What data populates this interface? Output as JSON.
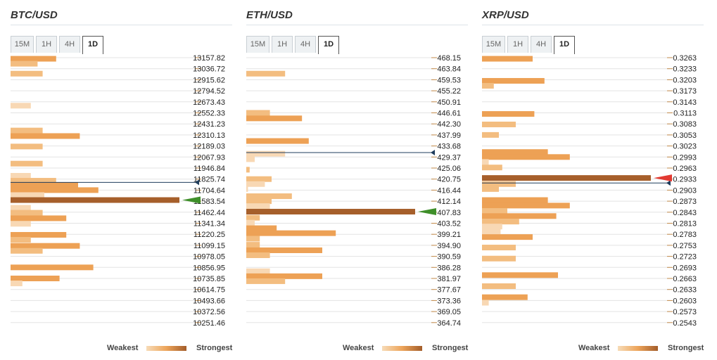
{
  "timeframes": [
    "15M",
    "1H",
    "4H",
    "1D"
  ],
  "active_timeframe": "1D",
  "legend": {
    "weakest": "Weakest",
    "strongest": "Strongest"
  },
  "colors": {
    "light": "#f8d8b4",
    "mid": "#f3bd80",
    "orange": "#eda155",
    "dark": "#a65f2b",
    "grid": "#e3e3e3",
    "price_line": "#1f3d5c",
    "green_marker": "#3f8f2a",
    "red_marker": "#e23a32"
  },
  "chart_data": [
    {
      "type": "bar",
      "title": "BTC/USD",
      "price_levels": [
        "13157.82",
        "13036.72",
        "12915.62",
        "12794.52",
        "12673.43",
        "12552.33",
        "12431.23",
        "12310.13",
        "12189.03",
        "12067.93",
        "11946.84",
        "11825.74",
        "11704.64",
        "11583.54",
        "11462.44",
        "11341.34",
        "11220.25",
        "11099.15",
        "10978.05",
        "10856.95",
        "10735.85",
        "10614.75",
        "10493.66",
        "10372.56",
        "10251.46"
      ],
      "bars": [
        {
          "pos": 0.1,
          "value": 0.27,
          "level": 2
        },
        {
          "pos": 0.55,
          "value": 0.16,
          "level": 1
        },
        {
          "pos": 1.45,
          "value": 0.19,
          "level": 1
        },
        {
          "pos": 4.35,
          "value": 0.12,
          "level": 0
        },
        {
          "pos": 6.6,
          "value": 0.19,
          "level": 1
        },
        {
          "pos": 7.1,
          "value": 0.41,
          "level": 2
        },
        {
          "pos": 8.05,
          "value": 0.19,
          "level": 1
        },
        {
          "pos": 9.6,
          "value": 0.19,
          "level": 1
        },
        {
          "pos": 10.7,
          "value": 0.12,
          "level": 0
        },
        {
          "pos": 11.15,
          "value": 0.27,
          "level": 1
        },
        {
          "pos": 11.55,
          "value": 0.4,
          "level": 2
        },
        {
          "pos": 12.0,
          "value": 0.52,
          "level": 2
        },
        {
          "pos": 12.45,
          "value": 0.2,
          "level": 0
        },
        {
          "pos": 12.9,
          "value": 1.0,
          "level": 3
        },
        {
          "pos": 13.6,
          "value": 0.12,
          "level": 0
        },
        {
          "pos": 14.05,
          "value": 0.19,
          "level": 1
        },
        {
          "pos": 14.55,
          "value": 0.33,
          "level": 2
        },
        {
          "pos": 15.05,
          "value": 0.12,
          "level": 0
        },
        {
          "pos": 16.05,
          "value": 0.33,
          "level": 2
        },
        {
          "pos": 16.5,
          "value": 0.12,
          "level": 1
        },
        {
          "pos": 17.05,
          "value": 0.41,
          "level": 2
        },
        {
          "pos": 17.5,
          "value": 0.19,
          "level": 1
        },
        {
          "pos": 19.0,
          "value": 0.49,
          "level": 2
        },
        {
          "pos": 20.0,
          "value": 0.29,
          "level": 2
        },
        {
          "pos": 20.45,
          "value": 0.07,
          "level": 0
        }
      ],
      "current_price_index": 11.3,
      "strongest_index": 12.9,
      "strongest_marker": "green"
    },
    {
      "type": "bar",
      "title": "ETH/USD",
      "price_levels": [
        "468.15",
        "463.84",
        "459.53",
        "455.22",
        "450.91",
        "446.61",
        "442.30",
        "437.99",
        "433.68",
        "429.37",
        "425.06",
        "420.75",
        "416.44",
        "412.14",
        "407.83",
        "403.52",
        "399.21",
        "394.90",
        "390.59",
        "386.28",
        "381.97",
        "377.67",
        "373.36",
        "369.05",
        "364.74"
      ],
      "bars": [
        {
          "pos": 1.45,
          "value": 0.23,
          "level": 1
        },
        {
          "pos": 5.0,
          "value": 0.14,
          "level": 1
        },
        {
          "pos": 5.5,
          "value": 0.33,
          "level": 2
        },
        {
          "pos": 7.55,
          "value": 0.37,
          "level": 2
        },
        {
          "pos": 8.7,
          "value": 0.23,
          "level": 0
        },
        {
          "pos": 9.2,
          "value": 0.05,
          "level": 0
        },
        {
          "pos": 10.15,
          "value": 0.02,
          "level": 1
        },
        {
          "pos": 11.0,
          "value": 0.15,
          "level": 1
        },
        {
          "pos": 11.45,
          "value": 0.11,
          "level": 0
        },
        {
          "pos": 11.9,
          "value": 0.01,
          "level": 0
        },
        {
          "pos": 12.55,
          "value": 0.27,
          "level": 1
        },
        {
          "pos": 13.0,
          "value": 0.15,
          "level": 1
        },
        {
          "pos": 13.45,
          "value": 0.14,
          "level": 0
        },
        {
          "pos": 13.95,
          "value": 1.0,
          "level": 3
        },
        {
          "pos": 14.5,
          "value": 0.08,
          "level": 1
        },
        {
          "pos": 14.95,
          "value": 0.05,
          "level": 0
        },
        {
          "pos": 15.45,
          "value": 0.18,
          "level": 2
        },
        {
          "pos": 15.9,
          "value": 0.53,
          "level": 2
        },
        {
          "pos": 16.4,
          "value": 0.08,
          "level": 1
        },
        {
          "pos": 16.95,
          "value": 0.08,
          "level": 1
        },
        {
          "pos": 17.45,
          "value": 0.45,
          "level": 2
        },
        {
          "pos": 17.9,
          "value": 0.14,
          "level": 1
        },
        {
          "pos": 19.35,
          "value": 0.14,
          "level": 0
        },
        {
          "pos": 19.8,
          "value": 0.45,
          "level": 2
        },
        {
          "pos": 20.25,
          "value": 0.23,
          "level": 1
        }
      ],
      "current_price_index": 8.6,
      "strongest_index": 13.95,
      "strongest_marker": "green"
    },
    {
      "type": "bar",
      "title": "XRP/USD",
      "price_levels": [
        "0.3263",
        "0.3233",
        "0.3203",
        "0.3173",
        "0.3143",
        "0.3113",
        "0.3083",
        "0.3053",
        "0.3023",
        "0.2993",
        "0.2963",
        "0.2933",
        "0.2903",
        "0.2873",
        "0.2843",
        "0.2813",
        "0.2783",
        "0.2753",
        "0.2723",
        "0.2693",
        "0.2663",
        "0.2633",
        "0.2603",
        "0.2573",
        "0.2543"
      ],
      "bars": [
        {
          "pos": 0.1,
          "value": 0.3,
          "level": 2
        },
        {
          "pos": 2.1,
          "value": 0.37,
          "level": 2
        },
        {
          "pos": 2.55,
          "value": 0.07,
          "level": 1
        },
        {
          "pos": 5.1,
          "value": 0.31,
          "level": 2
        },
        {
          "pos": 6.05,
          "value": 0.2,
          "level": 1
        },
        {
          "pos": 7.0,
          "value": 0.1,
          "level": 1
        },
        {
          "pos": 8.55,
          "value": 0.39,
          "level": 2
        },
        {
          "pos": 9.0,
          "value": 0.52,
          "level": 2
        },
        {
          "pos": 9.45,
          "value": 0.04,
          "level": 0
        },
        {
          "pos": 9.95,
          "value": 0.12,
          "level": 1
        },
        {
          "pos": 10.9,
          "value": 1.0,
          "level": 3
        },
        {
          "pos": 11.45,
          "value": 0.2,
          "level": 1
        },
        {
          "pos": 11.9,
          "value": 0.1,
          "level": 1
        },
        {
          "pos": 12.9,
          "value": 0.39,
          "level": 2
        },
        {
          "pos": 13.4,
          "value": 0.52,
          "level": 2
        },
        {
          "pos": 13.9,
          "value": 0.15,
          "level": 1
        },
        {
          "pos": 14.35,
          "value": 0.44,
          "level": 2
        },
        {
          "pos": 14.85,
          "value": 0.22,
          "level": 1
        },
        {
          "pos": 15.3,
          "value": 0.12,
          "level": 0
        },
        {
          "pos": 15.75,
          "value": 0.11,
          "level": 0
        },
        {
          "pos": 16.25,
          "value": 0.3,
          "level": 2
        },
        {
          "pos": 17.2,
          "value": 0.2,
          "level": 1
        },
        {
          "pos": 18.2,
          "value": 0.2,
          "level": 1
        },
        {
          "pos": 19.7,
          "value": 0.45,
          "level": 2
        },
        {
          "pos": 20.7,
          "value": 0.2,
          "level": 1
        },
        {
          "pos": 21.7,
          "value": 0.27,
          "level": 2
        },
        {
          "pos": 22.2,
          "value": 0.04,
          "level": 0
        }
      ],
      "current_price_index": 11.35,
      "strongest_index": 10.9,
      "strongest_marker": "red"
    }
  ]
}
